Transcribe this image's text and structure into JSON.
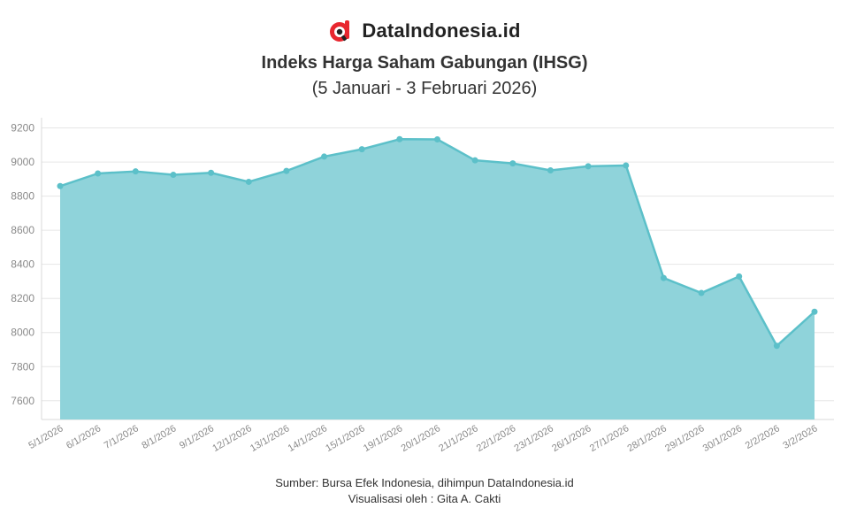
{
  "brand": {
    "name": "DataIndonesia.id",
    "icon": "dataindonesia-logo-icon",
    "logo_letter": "d",
    "accent": "#e8262e"
  },
  "header": {
    "title": "Indeks Harga Saham Gabungan (IHSG)",
    "subtitle": "(5 Januari - 3 Februari 2026)"
  },
  "footer": {
    "source": "Sumber: Bursa Efek Indonesia, dihimpun DataIndonesia.id",
    "credit": "Visualisasi oleh : Gita A. Cakti"
  },
  "chart_data": {
    "type": "area",
    "title": "Indeks Harga Saham Gabungan (IHSG)",
    "subtitle": "(5 Januari - 3 Februari 2026)",
    "xlabel": "",
    "ylabel": "",
    "categories": [
      "5/1/2026",
      "6/1/2026",
      "7/1/2026",
      "8/1/2026",
      "9/1/2026",
      "12/1/2026",
      "13/1/2026",
      "14/1/2026",
      "15/1/2026",
      "19/1/2026",
      "20/1/2026",
      "21/1/2026",
      "22/1/2026",
      "23/1/2026",
      "26/1/2026",
      "27/1/2026",
      "28/1/2026",
      "29/1/2026",
      "30/1/2026",
      "2/2/2026",
      "3/2/2026"
    ],
    "values": [
      8859,
      8933,
      8945,
      8925,
      8937,
      8884,
      8948,
      9032,
      9075,
      9134,
      9133,
      9010,
      8992,
      8951,
      8975,
      8980,
      8320,
      8232,
      8329,
      7922,
      8122
    ],
    "yticks": [
      7600,
      7800,
      8000,
      8200,
      8400,
      8600,
      8800,
      9000,
      9200
    ],
    "ylim": [
      7490,
      9260
    ],
    "grid": true,
    "legend": "none",
    "line_color": "#5cc0c9",
    "fill_color": "#8fd3da"
  }
}
